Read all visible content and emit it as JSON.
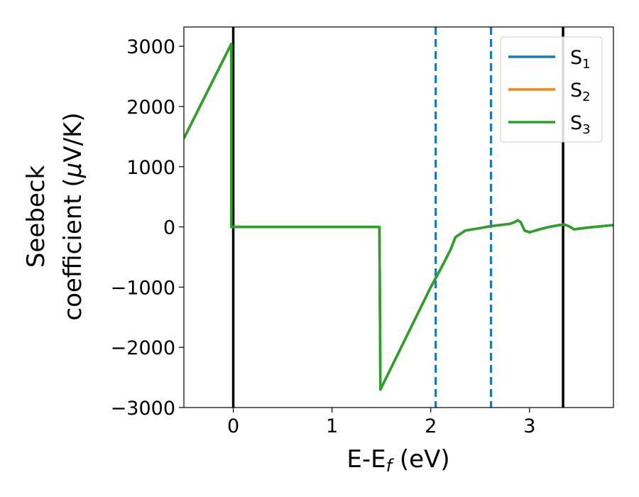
{
  "chart_data": {
    "type": "line",
    "xlabel": {
      "prefix": "E-E",
      "sub": "f",
      "suffix": " (eV)"
    },
    "ylabel": {
      "line1": "Seebeck",
      "line2_prefix": "coefficient  (",
      "line2_mu": "μ",
      "line2_suffix": "V/K)"
    },
    "xlim": [
      -0.5,
      3.85
    ],
    "ylim": [
      -3000,
      3320
    ],
    "xticks": [
      0,
      1,
      2,
      3
    ],
    "xtick_labels": [
      "0",
      "1",
      "2",
      "3"
    ],
    "yticks": [
      -3000,
      -2000,
      -1000,
      0,
      1000,
      2000,
      3000
    ],
    "ytick_labels": [
      "−3000",
      "−2000",
      "−1000",
      "0",
      "1000",
      "2000",
      "3000"
    ],
    "legend_position": "top-right",
    "legend": [
      {
        "base": "S",
        "sub": "1",
        "color": "#1f77b4"
      },
      {
        "base": "S",
        "sub": "2",
        "color": "#ff7f0e"
      },
      {
        "base": "S",
        "sub": "3",
        "color": "#2ca02c"
      }
    ],
    "series": [
      {
        "name": "S1",
        "color": "#1f77b4",
        "x": [
          -0.5,
          -0.02,
          -0.02,
          1.48,
          1.49,
          2.0,
          2.1,
          2.2,
          2.25,
          2.35,
          2.5,
          2.6,
          2.7,
          2.8,
          2.85,
          2.88,
          2.91,
          2.95,
          3.0,
          3.1,
          3.2,
          3.3,
          3.35,
          3.4,
          3.45,
          3.6,
          3.85
        ],
        "y": [
          1470,
          3040,
          0,
          0,
          -2700,
          -1000,
          -700,
          -380,
          -170,
          -60,
          -20,
          10,
          30,
          50,
          80,
          110,
          80,
          -60,
          -90,
          -40,
          0,
          30,
          40,
          10,
          -40,
          -10,
          30
        ]
      },
      {
        "name": "S2",
        "color": "#ff7f0e",
        "x": [
          -0.5,
          -0.02,
          -0.02,
          1.48,
          1.49,
          2.0,
          2.1,
          2.2,
          2.25,
          2.35,
          2.5,
          2.6,
          2.7,
          2.8,
          2.85,
          2.88,
          2.91,
          2.95,
          3.0,
          3.1,
          3.2,
          3.3,
          3.35,
          3.4,
          3.45,
          3.6,
          3.85
        ],
        "y": [
          1470,
          3040,
          0,
          0,
          -2700,
          -1000,
          -700,
          -380,
          -170,
          -60,
          -20,
          10,
          30,
          50,
          80,
          110,
          80,
          -60,
          -90,
          -40,
          0,
          30,
          40,
          10,
          -40,
          -10,
          30
        ]
      },
      {
        "name": "S3",
        "color": "#2ca02c",
        "x": [
          -0.5,
          -0.02,
          -0.02,
          1.48,
          1.49,
          2.0,
          2.1,
          2.2,
          2.25,
          2.35,
          2.5,
          2.6,
          2.7,
          2.8,
          2.85,
          2.88,
          2.91,
          2.95,
          3.0,
          3.1,
          3.2,
          3.3,
          3.35,
          3.4,
          3.45,
          3.6,
          3.85
        ],
        "y": [
          1470,
          3040,
          0,
          0,
          -2700,
          -1000,
          -700,
          -380,
          -170,
          -60,
          -20,
          10,
          30,
          50,
          80,
          110,
          80,
          -60,
          -90,
          -40,
          0,
          30,
          40,
          10,
          -40,
          -10,
          30
        ]
      }
    ],
    "vlines": [
      {
        "x": 0.0,
        "style": "solid",
        "color": "#000000"
      },
      {
        "x": 3.34,
        "style": "solid",
        "color": "#000000"
      },
      {
        "x": 2.05,
        "style": "dashed",
        "color": "#1f77b4"
      },
      {
        "x": 2.61,
        "style": "dashed",
        "color": "#1f77b4"
      }
    ],
    "grid": false
  }
}
